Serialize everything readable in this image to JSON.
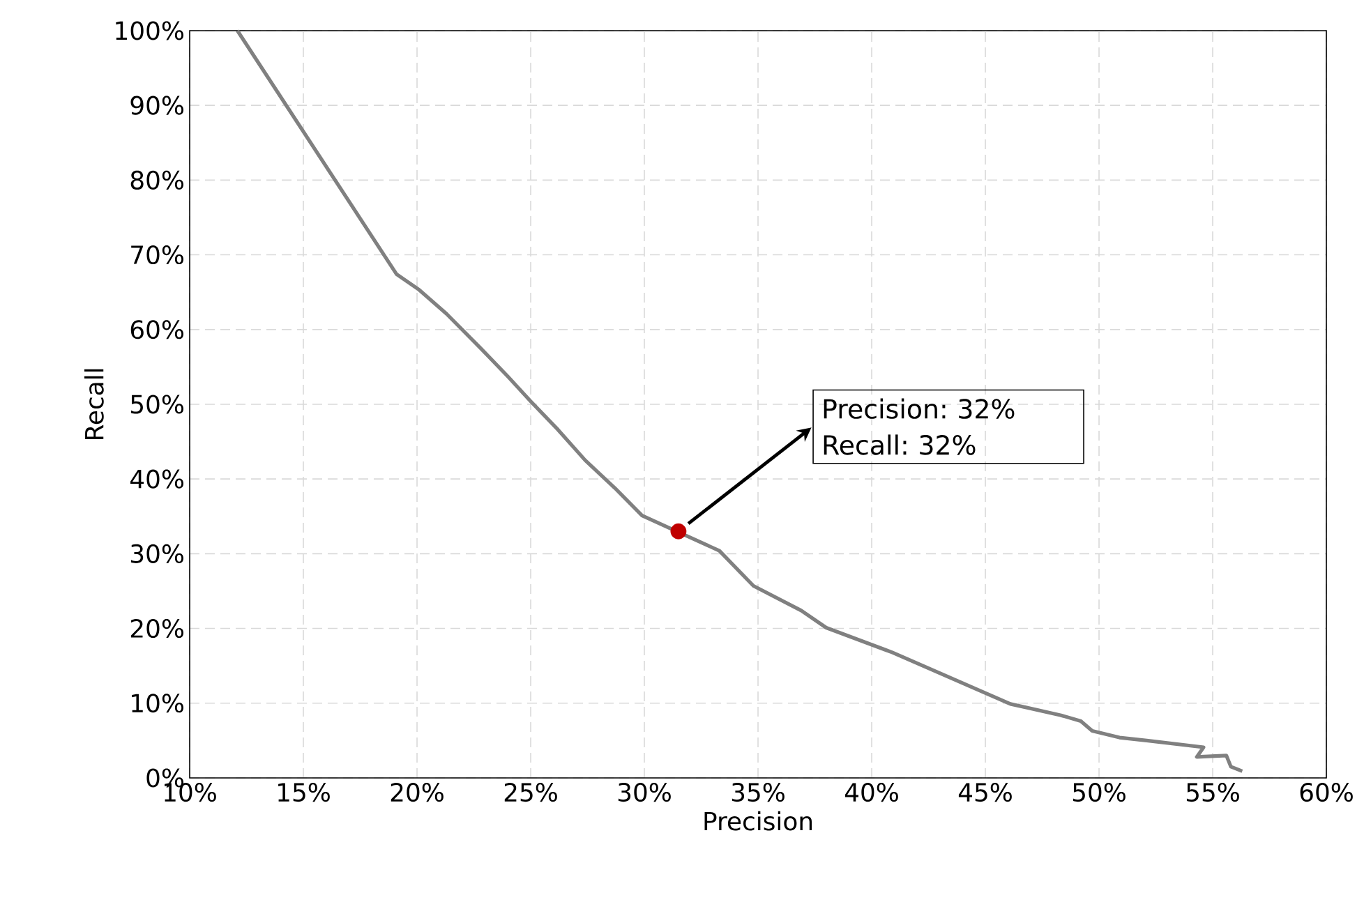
{
  "chart_data": {
    "type": "line",
    "xlabel": "Precision",
    "ylabel": "Recall",
    "series": [
      {
        "color": "#808080",
        "x": [
          12.1,
          19.1,
          20.1,
          21.3,
          22.8,
          24.0,
          25.0,
          26.2,
          27.4,
          28.7,
          29.9,
          33.3,
          34.8,
          36.9,
          38.0,
          40.9,
          46.1,
          48.3,
          49.2,
          49.7,
          50.9,
          52.1,
          54.6,
          54.3,
          55.6,
          55.8,
          56.3
        ],
        "values": [
          100,
          67.4,
          65.3,
          62.1,
          57.5,
          53.7,
          50.4,
          46.6,
          42.5,
          38.8,
          35.1,
          30.4,
          25.7,
          22.4,
          20.1,
          16.8,
          9.9,
          8.4,
          7.6,
          6.3,
          5.4,
          5.0,
          4.1,
          2.8,
          3.0,
          1.5,
          0.9
        ]
      },
      {
        "type": "scatter",
        "color": "#c00000",
        "x": [
          31.5
        ],
        "values": [
          33.0
        ]
      }
    ],
    "annotations": [
      "Precision: 32% Recall: 32%"
    ],
    "xlim": [
      10,
      60
    ],
    "ylim": [
      0,
      100
    ],
    "xticks": [
      {
        "value": 10,
        "label": "10%"
      },
      {
        "value": 15,
        "label": "15%"
      },
      {
        "value": 20,
        "label": "20%"
      },
      {
        "value": 25,
        "label": "25%"
      },
      {
        "value": 30,
        "label": "30%"
      },
      {
        "value": 35,
        "label": "35%"
      },
      {
        "value": 40,
        "label": "40%"
      },
      {
        "value": 45,
        "label": "45%"
      },
      {
        "value": 50,
        "label": "50%"
      },
      {
        "value": 55,
        "label": "55%"
      },
      {
        "value": 60,
        "label": "60%"
      }
    ],
    "yticks": [
      {
        "value": 0,
        "label": "0%"
      },
      {
        "value": 10,
        "label": "10%"
      },
      {
        "value": 20,
        "label": "20%"
      },
      {
        "value": 30,
        "label": "30%"
      },
      {
        "value": 40,
        "label": "40%"
      },
      {
        "value": 50,
        "label": "50%"
      },
      {
        "value": 60,
        "label": "60%"
      },
      {
        "value": 70,
        "label": "70%"
      },
      {
        "value": 80,
        "label": "80%"
      },
      {
        "value": 90,
        "label": "90%"
      },
      {
        "value": 100,
        "label": "100%"
      }
    ],
    "grid": true
  }
}
